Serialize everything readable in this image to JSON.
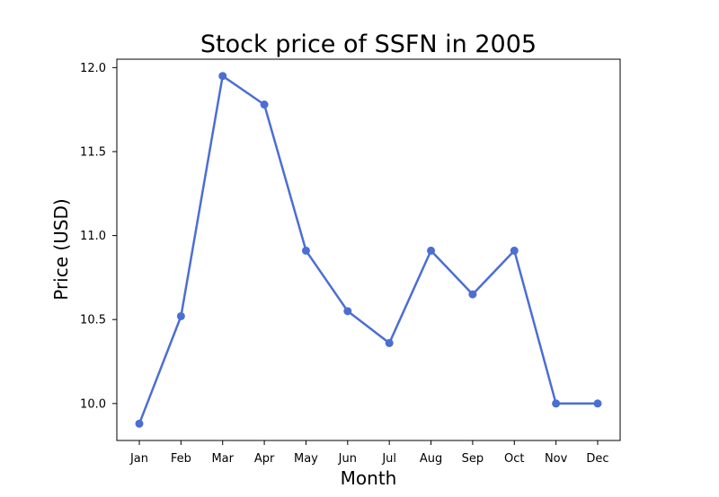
{
  "chart_data": {
    "type": "line",
    "title": "Stock price of SSFN in 2005",
    "xlabel": "Month",
    "ylabel": "Price (USD)",
    "categories": [
      "Jan",
      "Feb",
      "Mar",
      "Apr",
      "May",
      "Jun",
      "Jul",
      "Aug",
      "Sep",
      "Oct",
      "Nov",
      "Dec"
    ],
    "series": [
      {
        "values": [
          9.88,
          10.52,
          11.95,
          11.78,
          10.91,
          10.55,
          10.36,
          10.91,
          10.65,
          10.91,
          10.0,
          10.0
        ]
      }
    ],
    "ylim": [
      9.78,
      12.05
    ],
    "yticks": [
      "10.0",
      "10.5",
      "11.0",
      "11.5",
      "12.0"
    ],
    "line_color": "#4c6ed3",
    "marker": "circle",
    "grid": false,
    "legend": "none"
  }
}
